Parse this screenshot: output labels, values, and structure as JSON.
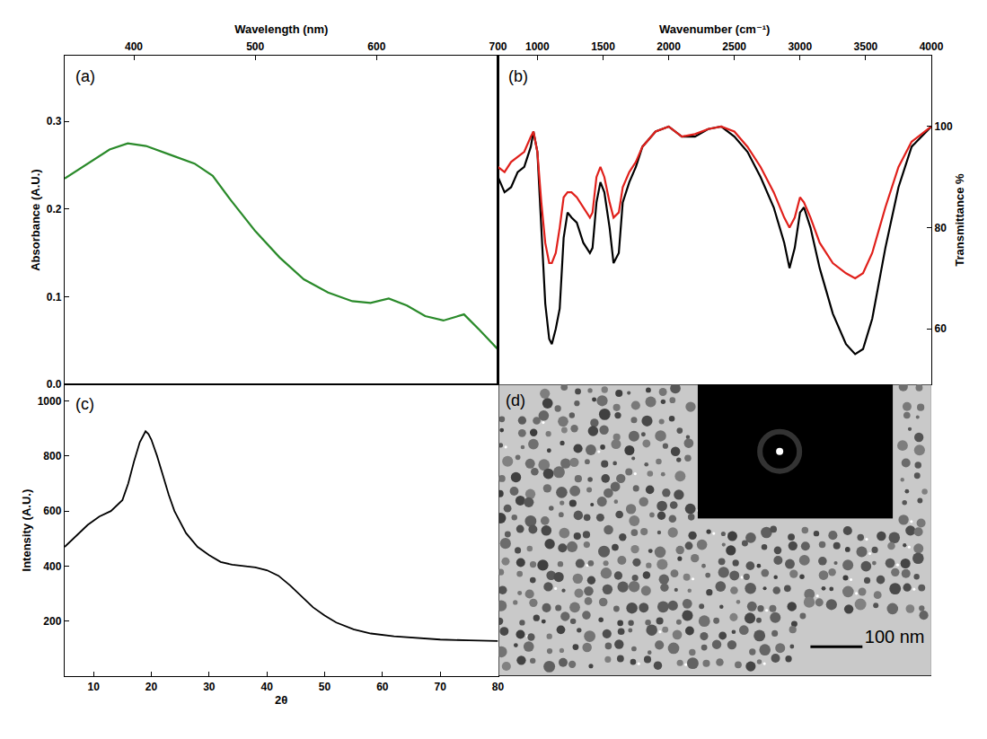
{
  "chart_data": [
    {
      "type": "line",
      "label": "(a)",
      "x_label": "Wavelength (nm)",
      "y_label": "Absorbance (A.U.)",
      "x": [
        343,
        360,
        380,
        395,
        410,
        430,
        450,
        465,
        480,
        500,
        520,
        540,
        560,
        580,
        595,
        610,
        625,
        640,
        655,
        672,
        685,
        700
      ],
      "series": [
        {
          "color": "#2a8a2a",
          "values": [
            0.235,
            0.25,
            0.268,
            0.275,
            0.272,
            0.262,
            0.252,
            0.238,
            0.21,
            0.175,
            0.145,
            0.12,
            0.105,
            0.095,
            0.093,
            0.098,
            0.09,
            0.078,
            0.073,
            0.08,
            0.062,
            0.04
          ]
        }
      ],
      "xlim": [
        343,
        700
      ],
      "xticks": [
        400,
        500,
        600
      ],
      "ylim": [
        0,
        0.375
      ],
      "yticks": [
        {
          "value": 0,
          "label": "0.0"
        },
        0.1,
        0.2,
        0.3
      ]
    },
    {
      "type": "line",
      "label": "(b)",
      "x_label": "Wavenumber (cm⁻¹)",
      "y_label": "Transmittance %",
      "x": [
        700,
        750,
        800,
        850,
        900,
        950,
        970,
        1000,
        1030,
        1060,
        1090,
        1110,
        1140,
        1170,
        1200,
        1230,
        1260,
        1300,
        1350,
        1400,
        1420,
        1450,
        1480,
        1510,
        1550,
        1580,
        1620,
        1650,
        1700,
        1750,
        1800,
        1900,
        2000,
        2100,
        2200,
        2300,
        2400,
        2500,
        2600,
        2700,
        2800,
        2880,
        2920,
        2960,
        3000,
        3030,
        3080,
        3150,
        3250,
        3350,
        3420,
        3480,
        3550,
        3650,
        3750,
        3850,
        4000
      ],
      "series": [
        {
          "color": "#000000",
          "values": [
            90,
            87,
            88,
            91,
            92,
            96,
            99,
            95,
            80,
            65,
            58,
            57,
            60,
            64,
            78,
            83,
            82,
            81,
            77,
            75,
            76,
            85,
            89,
            87,
            80,
            73,
            75,
            85,
            89,
            92,
            96,
            99,
            100,
            98,
            98,
            99.5,
            100,
            98,
            95,
            90,
            84,
            77,
            72,
            76,
            83,
            84,
            80,
            72,
            63,
            57,
            55,
            56,
            62,
            76,
            88,
            96,
            100
          ]
        },
        {
          "color": "#e0201b",
          "values": [
            92,
            91,
            93,
            94,
            95,
            98,
            99,
            95,
            85,
            77,
            73,
            73,
            75,
            80,
            86,
            87,
            87,
            86,
            84,
            82,
            83,
            90,
            92,
            90,
            85,
            82,
            83,
            88,
            91,
            93,
            96,
            99,
            100,
            98,
            98.5,
            99.5,
            100,
            99,
            96,
            92,
            87,
            82,
            80,
            82,
            86,
            85,
            82,
            77,
            73,
            71,
            70,
            71,
            75,
            84,
            92,
            97,
            100
          ]
        }
      ],
      "xlim": [
        700,
        4000
      ],
      "xticks": [
        700,
        1000,
        1500,
        2000,
        2500,
        3000,
        3500,
        4000
      ],
      "ylim": [
        49,
        114
      ],
      "yticks": [
        60,
        80,
        100
      ]
    },
    {
      "type": "line",
      "label": "(c)",
      "x_label": "2θ",
      "y_label": "Intensity (A.U.)",
      "x": [
        5,
        7,
        9,
        11,
        13,
        15,
        16,
        17,
        18,
        19,
        19.5,
        20,
        21,
        22,
        23,
        24,
        25,
        26,
        28,
        30,
        32,
        34,
        36,
        38,
        40,
        42,
        44,
        46,
        48,
        50,
        52,
        55,
        58,
        62,
        66,
        70,
        75,
        80
      ],
      "series": [
        {
          "color": "#000000",
          "values": [
            470,
            510,
            550,
            580,
            600,
            640,
            700,
            780,
            850,
            890,
            880,
            860,
            800,
            730,
            660,
            600,
            560,
            520,
            470,
            440,
            415,
            405,
            400,
            395,
            385,
            365,
            330,
            290,
            250,
            220,
            195,
            170,
            155,
            145,
            138,
            133,
            130,
            128
          ]
        }
      ],
      "xlim": [
        5,
        80
      ],
      "xticks": [
        10,
        20,
        30,
        40,
        50,
        60,
        70,
        80
      ],
      "ylim": [
        0,
        1060
      ],
      "yticks": [
        200,
        400,
        600,
        800,
        1000
      ]
    }
  ],
  "image_panel": {
    "label": "(d)",
    "scale_bar": "100 nm"
  }
}
